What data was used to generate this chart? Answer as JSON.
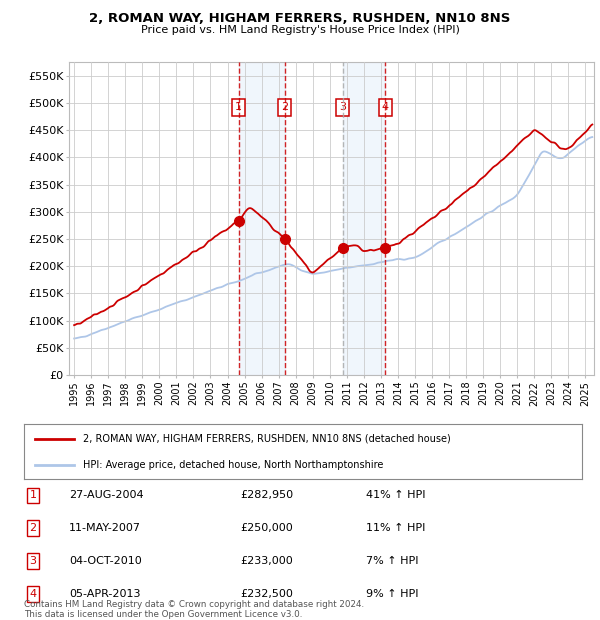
{
  "title": "2, ROMAN WAY, HIGHAM FERRERS, RUSHDEN, NN10 8NS",
  "subtitle": "Price paid vs. HM Land Registry's House Price Index (HPI)",
  "ylabel_values": [
    0,
    50000,
    100000,
    150000,
    200000,
    250000,
    300000,
    350000,
    400000,
    450000,
    500000,
    550000
  ],
  "ylim": [
    0,
    575000
  ],
  "xlim_start": 1994.7,
  "xlim_end": 2025.5,
  "legend_line1": "2, ROMAN WAY, HIGHAM FERRERS, RUSHDEN, NN10 8NS (detached house)",
  "legend_line2": "HPI: Average price, detached house, North Northamptonshire",
  "sale_labels": [
    "1",
    "2",
    "3",
    "4"
  ],
  "sale_dates_num": [
    2004.65,
    2007.36,
    2010.75,
    2013.26
  ],
  "sale_prices": [
    282950,
    250000,
    233000,
    232500
  ],
  "sale_info": [
    [
      "1",
      "27-AUG-2004",
      "£282,950",
      "41% ↑ HPI"
    ],
    [
      "2",
      "11-MAY-2007",
      "£250,000",
      "11% ↑ HPI"
    ],
    [
      "3",
      "04-OCT-2010",
      "£233,000",
      "7% ↑ HPI"
    ],
    [
      "4",
      "05-APR-2013",
      "£232,500",
      "9% ↑ HPI"
    ]
  ],
  "footer": "Contains HM Land Registry data © Crown copyright and database right 2024.\nThis data is licensed under the Open Government Licence v3.0.",
  "hpi_color": "#aec6e8",
  "price_color": "#cc0000",
  "sale_box_color": "#cc0000",
  "background_color": "#ffffff",
  "grid_color": "#cccccc",
  "shade_color": "#d0e4f7"
}
